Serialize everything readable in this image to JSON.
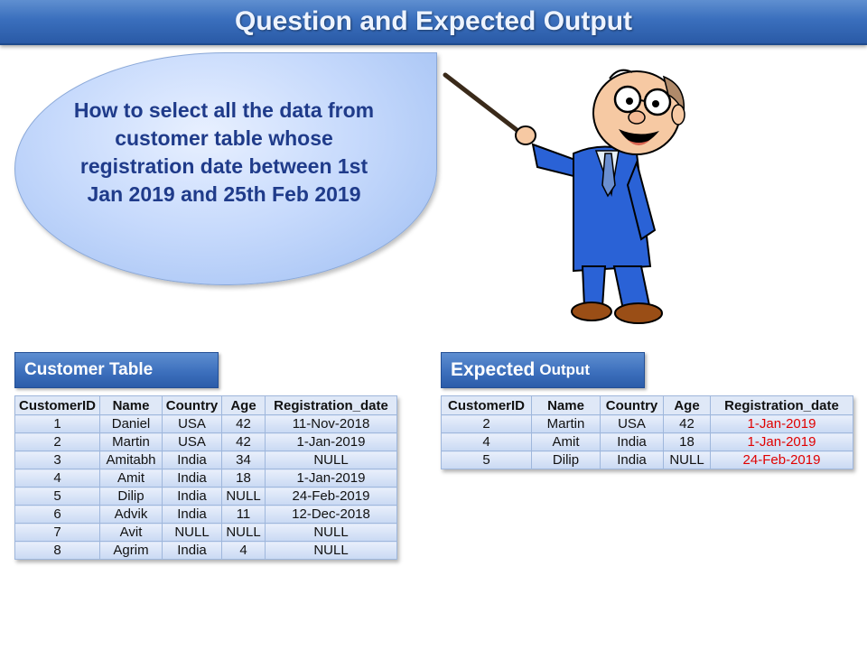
{
  "title": "Question and Expected Output",
  "question": "How to select all the data from customer table whose registration date between 1st Jan 2019 and 25th Feb 2019",
  "customer_table": {
    "label": "Customer Table",
    "headers": [
      "CustomerID",
      "Name",
      "Country",
      "Age",
      "Registration_date"
    ],
    "rows": [
      [
        "1",
        "Daniel",
        "USA",
        "42",
        "11-Nov-2018"
      ],
      [
        "2",
        "Martin",
        "USA",
        "42",
        "1-Jan-2019"
      ],
      [
        "3",
        "Amitabh",
        "India",
        "34",
        "NULL"
      ],
      [
        "4",
        "Amit",
        "India",
        "18",
        "1-Jan-2019"
      ],
      [
        "5",
        "Dilip",
        "India",
        "NULL",
        "24-Feb-2019"
      ],
      [
        "6",
        "Advik",
        "India",
        "11",
        "12-Dec-2018"
      ],
      [
        "7",
        "Avit",
        "NULL",
        "NULL",
        "NULL"
      ],
      [
        "8",
        "Agrim",
        "India",
        "4",
        "NULL"
      ]
    ]
  },
  "expected_output": {
    "label_main": "Expected",
    "label_sub": "Output",
    "headers": [
      "CustomerID",
      "Name",
      "Country",
      "Age",
      "Registration_date"
    ],
    "rows": [
      [
        "2",
        "Martin",
        "USA",
        "42",
        "1-Jan-2019"
      ],
      [
        "4",
        "Amit",
        "India",
        "18",
        "1-Jan-2019"
      ],
      [
        "5",
        "Dilip",
        "India",
        "NULL",
        "24-Feb-2019"
      ]
    ],
    "highlight_color": "#e00000"
  },
  "colors": {
    "title_bar": "#3a6fbd",
    "bubble_text": "#1f3b8a",
    "label_box": "#3d70bd"
  }
}
